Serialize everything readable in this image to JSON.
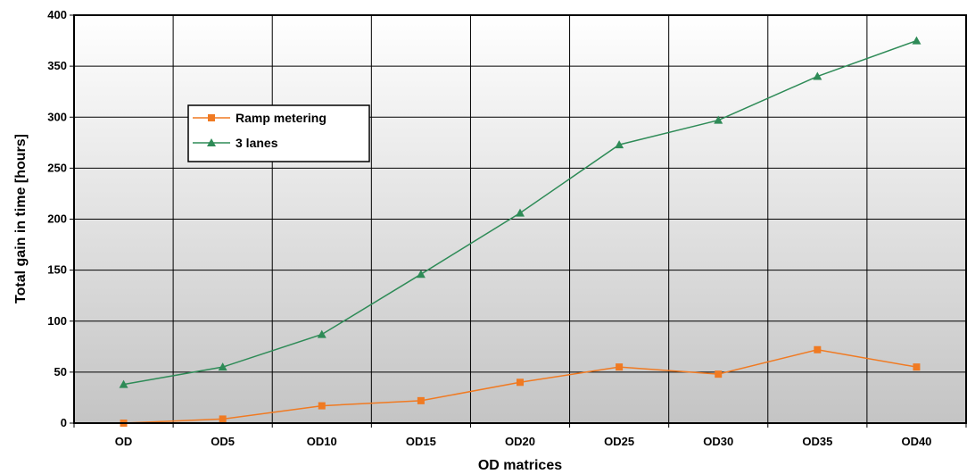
{
  "chart_data": {
    "type": "line",
    "title": "",
    "xlabel": "OD matrices",
    "ylabel": "Total gain in time [hours]",
    "categories": [
      "OD",
      "OD5",
      "OD10",
      "OD15",
      "OD20",
      "OD25",
      "OD30",
      "OD35",
      "OD40"
    ],
    "ylim": [
      0,
      400
    ],
    "yticks": [
      0,
      50,
      100,
      150,
      200,
      250,
      300,
      350,
      400
    ],
    "grid": true,
    "legend_position": "top-left",
    "series": [
      {
        "name": "Ramp metering",
        "color": "#f07a22",
        "marker": "square",
        "values": [
          0,
          4,
          17,
          22,
          40,
          55,
          48,
          72,
          55
        ]
      },
      {
        "name": "3 lanes",
        "color": "#2e8b57",
        "marker": "triangle",
        "values": [
          38,
          55,
          87,
          146,
          206,
          273,
          297,
          340,
          375
        ]
      }
    ]
  }
}
